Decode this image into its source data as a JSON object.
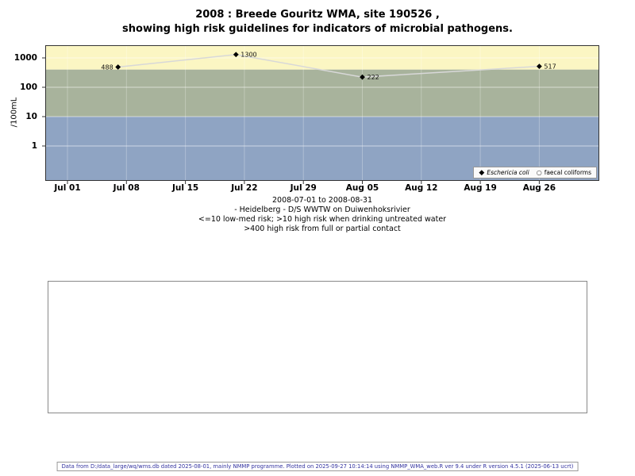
{
  "title": {
    "line1": "2008 : Breede Gouritz WMA, site 190526 ,",
    "line2": "showing high risk guidelines for indicators of microbial pathogens."
  },
  "chart_data": {
    "type": "scatter",
    "ylabel": "/100mL",
    "y_scale": "log10",
    "x_start": "2008-07-01",
    "x_end": "2008-08-31",
    "x_ticks": [
      "Jul 01",
      "Jul 08",
      "Jul 15",
      "Jul 22",
      "Jul 29",
      "Aug 05",
      "Aug 12",
      "Aug 19",
      "Aug 26"
    ],
    "y_ticks": [
      1,
      10,
      100,
      1000
    ],
    "grid": true,
    "legend_position": "bottom-right",
    "line_color": "#d8d8d8",
    "bands": [
      {
        "label": ">400 high risk from full or partial contact",
        "min": 400,
        "max": null,
        "color": "#fbf6c3"
      },
      {
        "label": ">10 high risk when drinking untreated water",
        "min": 10,
        "max": 400,
        "color": "#a8b39c"
      },
      {
        "label": "<=10 low-med risk",
        "min": null,
        "max": 10,
        "color": "#8fa4c3"
      }
    ],
    "series": [
      {
        "name": "Eschericia coli",
        "marker": "filled-diamond",
        "color": "#000000",
        "points": [
          {
            "date": "2008-07-07",
            "value": 488,
            "label": "488",
            "label_pos": "left"
          },
          {
            "date": "2008-07-21",
            "value": 1300,
            "label": "1300",
            "label_pos": "right"
          },
          {
            "date": "2008-08-05",
            "value": 222,
            "label": "222",
            "label_pos": "right"
          },
          {
            "date": "2008-08-26",
            "value": 517,
            "label": "517",
            "label_pos": "right"
          }
        ]
      },
      {
        "name": "faecal coliforms",
        "marker": "open-circle",
        "color": "#555555",
        "points": []
      }
    ]
  },
  "caption": {
    "line1": "2008-07-01 to 2008-08-31",
    "line2": "- Heidelberg - D/S WWTW on Duiwenhoksrivier",
    "line3": "<=10 low-med risk; >10 high risk when drinking untreated water",
    "line4": ">400 high risk from full or partial contact"
  },
  "footer": {
    "text": "Data from D:/data_large/wq/wms.db dated 2025-08-01, mainly NMMP programme. Plotted on 2025-09-27 10:14:14 using NMMP_WMA_web.R ver 9.4 under R version 4.5.1 (2025-06-13 ucrt)"
  }
}
